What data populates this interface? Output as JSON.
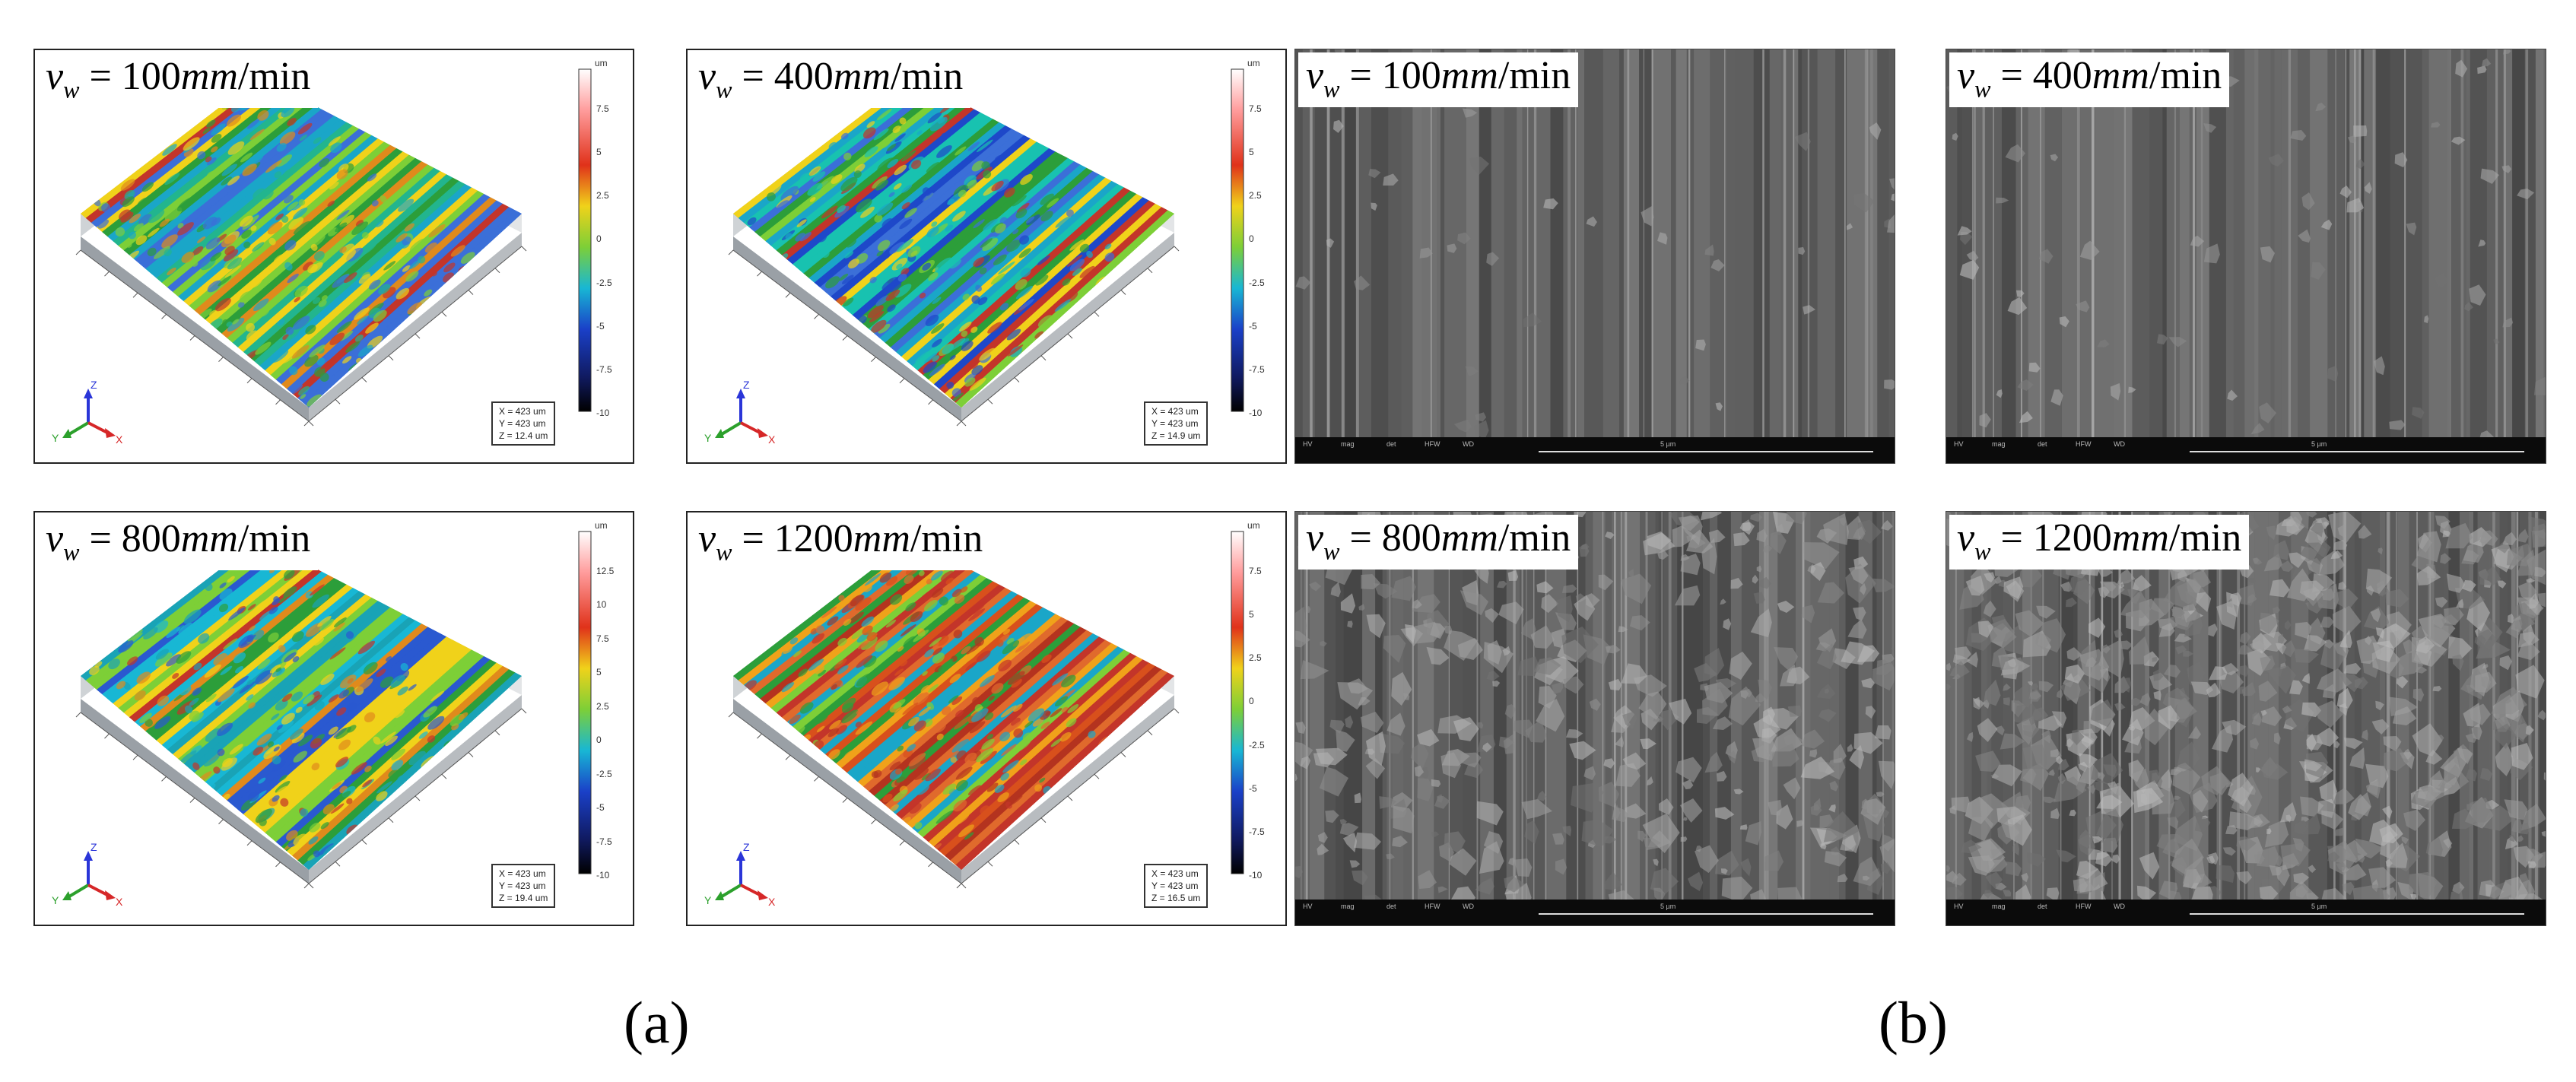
{
  "panels": {
    "topo": [
      {
        "label_var": "v",
        "label_sub": "w",
        "label_value": "100",
        "label_unit_italic": "mm",
        "label_unit_rest": "/min",
        "cbar_unit": "um",
        "cbar_ticks": [
          "7.5",
          "5",
          "2.5",
          "0",
          "-2.5",
          "-5",
          "-7.5",
          "-10"
        ],
        "info": [
          "X = 423 um",
          "Y = 423 um",
          "Z = 12.4 um"
        ]
      },
      {
        "label_var": "v",
        "label_sub": "w",
        "label_value": "400",
        "label_unit_italic": "mm",
        "label_unit_rest": "/min",
        "cbar_unit": "um",
        "cbar_ticks": [
          "7.5",
          "5",
          "2.5",
          "0",
          "-2.5",
          "-5",
          "-7.5",
          "-10"
        ],
        "info": [
          "X = 423 um",
          "Y = 423 um",
          "Z = 14.9 um"
        ]
      },
      {
        "label_var": "v",
        "label_sub": "w",
        "label_value": "800",
        "label_unit_italic": "mm",
        "label_unit_rest": "/min",
        "cbar_unit": "um",
        "cbar_ticks": [
          "12.5",
          "10",
          "7.5",
          "5",
          "2.5",
          "0",
          "-2.5",
          "-5",
          "-7.5",
          "-10"
        ],
        "info": [
          "X = 423 um",
          "Y = 423 um",
          "Z = 19.4 um"
        ]
      },
      {
        "label_var": "v",
        "label_sub": "w",
        "label_value": "1200",
        "label_unit_italic": "mm",
        "label_unit_rest": "/min",
        "cbar_unit": "um",
        "cbar_ticks": [
          "7.5",
          "5",
          "2.5",
          "0",
          "-2.5",
          "-5",
          "-7.5",
          "-10"
        ],
        "info": [
          "X = 423 um",
          "Y = 423 um",
          "Z = 16.5 um"
        ]
      }
    ],
    "sem": [
      {
        "label_var": "v",
        "label_sub": "w",
        "label_value": "100",
        "label_unit_italic": "mm",
        "label_unit_rest": "/min"
      },
      {
        "label_var": "v",
        "label_sub": "w",
        "label_value": "400",
        "label_unit_italic": "mm",
        "label_unit_rest": "/min"
      },
      {
        "label_var": "v",
        "label_sub": "w",
        "label_value": "800",
        "label_unit_italic": "mm",
        "label_unit_rest": "/min"
      },
      {
        "label_var": "v",
        "label_sub": "w",
        "label_value": "1200",
        "label_unit_italic": "mm",
        "label_unit_rest": "/min"
      }
    ]
  },
  "axis_icon": {
    "z": "Z",
    "y": "Y",
    "x": "X",
    "colors": {
      "z": "#2a35d8",
      "y": "#2ca02c",
      "x": "#d62728"
    }
  },
  "captions": {
    "a": "(a)",
    "b": "(b)"
  },
  "sem_bar_text": [
    "HV",
    "mag",
    "det",
    "HFW",
    "WD",
    "5 µm"
  ]
}
